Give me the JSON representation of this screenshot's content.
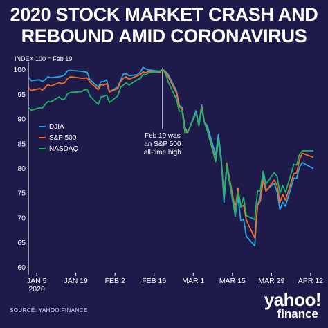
{
  "title_line1": "2020 STOCK MARKET CRASH AND",
  "title_line2": "REBOUND AMID CORONAVIRUS",
  "source": "SOURCE:  YAHOO FINANCE",
  "brand": {
    "logo": "yahoo!",
    "sub": "finance"
  },
  "colors": {
    "background": "#1e1b4b",
    "DJIA": "#2aa7dd",
    "S&P 500": "#f06e24",
    "NASDAQ": "#1fb36b",
    "annotation_line": "#ffffff"
  },
  "chart_data": {
    "type": "line",
    "title": "2020 STOCK MARKET CRASH AND REBOUND AMID CORONAVIRUS",
    "ylabel": "INDEX 100 = Feb 19",
    "ylim": [
      59,
      101
    ],
    "yticks": [
      60,
      65,
      70,
      75,
      80,
      85,
      90,
      95,
      100
    ],
    "xlim": [
      "2020-01-02",
      "2020-04-14"
    ],
    "xticks": [
      {
        "date": "2020-01-05",
        "label": "JAN 5",
        "label2": "2020"
      },
      {
        "date": "2020-01-19",
        "label": "JAN 19"
      },
      {
        "date": "2020-02-02",
        "label": "FEB 2"
      },
      {
        "date": "2020-02-16",
        "label": "FEB 16"
      },
      {
        "date": "2020-03-01",
        "label": "MAR 1"
      },
      {
        "date": "2020-03-15",
        "label": "MAR 15"
      },
      {
        "date": "2020-03-29",
        "label": "MAR 29"
      },
      {
        "date": "2020-04-12",
        "label": "APR 12"
      }
    ],
    "grid": false,
    "legend": "left",
    "annotation": {
      "date": "2020-02-19",
      "lines": [
        "Feb 19 was",
        "an S&P 500",
        "all-time high"
      ]
    },
    "dates": [
      "2020-01-02",
      "2020-01-03",
      "2020-01-06",
      "2020-01-07",
      "2020-01-08",
      "2020-01-09",
      "2020-01-10",
      "2020-01-13",
      "2020-01-14",
      "2020-01-15",
      "2020-01-16",
      "2020-01-17",
      "2020-01-21",
      "2020-01-22",
      "2020-01-23",
      "2020-01-24",
      "2020-01-27",
      "2020-01-28",
      "2020-01-29",
      "2020-01-30",
      "2020-01-31",
      "2020-02-03",
      "2020-02-04",
      "2020-02-05",
      "2020-02-06",
      "2020-02-07",
      "2020-02-10",
      "2020-02-11",
      "2020-02-12",
      "2020-02-13",
      "2020-02-14",
      "2020-02-18",
      "2020-02-19",
      "2020-02-20",
      "2020-02-21",
      "2020-02-24",
      "2020-02-25",
      "2020-02-26",
      "2020-02-27",
      "2020-02-28",
      "2020-03-02",
      "2020-03-03",
      "2020-03-04",
      "2020-03-05",
      "2020-03-06",
      "2020-03-09",
      "2020-03-10",
      "2020-03-11",
      "2020-03-12",
      "2020-03-13",
      "2020-03-16",
      "2020-03-17",
      "2020-03-18",
      "2020-03-19",
      "2020-03-20",
      "2020-03-23",
      "2020-03-24",
      "2020-03-25",
      "2020-03-26",
      "2020-03-27",
      "2020-03-30",
      "2020-03-31",
      "2020-04-01",
      "2020-04-02",
      "2020-04-03",
      "2020-04-06",
      "2020-04-07",
      "2020-04-08",
      "2020-04-09",
      "2020-04-13"
    ],
    "series": [
      {
        "name": "DJIA",
        "values": [
          98.5,
          97.7,
          97.9,
          97.5,
          97.9,
          98.5,
          98.3,
          98.5,
          98.6,
          98.9,
          99.7,
          99.8,
          99.6,
          99.5,
          99.4,
          97.9,
          96.4,
          97.5,
          97.5,
          97.9,
          95.5,
          96.4,
          97.8,
          99.0,
          99.1,
          98.7,
          98.9,
          99.4,
          100.4,
          100.1,
          99.9,
          99.6,
          100.0,
          99.6,
          99.0,
          95.6,
          92.7,
          92.3,
          88.3,
          87.2,
          91.6,
          88.8,
          92.8,
          89.3,
          88.6,
          82.7,
          86.8,
          82.2,
          73.1,
          80.3,
          70.3,
          74.2,
          69.3,
          69.7,
          66.2,
          64.3,
          72.4,
          74.3,
          78.8,
          75.5,
          76.9,
          75.2,
          71.6,
          73.1,
          72.3,
          78.0,
          77.9,
          80.2,
          81.1,
          79.9
        ]
      },
      {
        "name": "S&P 500",
        "values": [
          96.3,
          95.7,
          96.1,
          95.8,
          96.3,
          96.9,
          96.6,
          97.3,
          97.1,
          97.3,
          98.1,
          98.5,
          98.2,
          98.2,
          98.3,
          97.4,
          95.9,
          96.9,
          96.8,
          97.1,
          95.4,
          96.1,
          97.5,
          98.2,
          98.5,
          98.0,
          98.7,
          98.9,
          99.5,
          99.3,
          99.6,
          99.4,
          100.0,
          99.6,
          98.5,
          95.2,
          92.4,
          92.0,
          87.9,
          87.2,
          91.2,
          88.6,
          92.4,
          89.3,
          87.8,
          81.7,
          85.7,
          81.6,
          74.2,
          81.0,
          71.6,
          75.9,
          72.2,
          72.5,
          69.5,
          65.9,
          72.5,
          73.3,
          77.6,
          75.3,
          77.6,
          76.4,
          73.0,
          74.7,
          73.5,
          78.9,
          79.0,
          81.7,
          83.0,
          82.2
        ]
      },
      {
        "name": "NASDAQ",
        "values": [
          92.3,
          91.7,
          92.2,
          92.2,
          92.9,
          93.5,
          93.4,
          94.4,
          93.9,
          94.0,
          95.0,
          95.3,
          95.5,
          95.8,
          96.0,
          94.6,
          92.9,
          94.4,
          94.5,
          94.8,
          93.3,
          94.6,
          96.4,
          96.8,
          97.3,
          96.8,
          97.9,
          98.1,
          99.0,
          98.9,
          99.3,
          99.6,
          100.0,
          99.2,
          97.5,
          93.9,
          91.5,
          91.6,
          87.2,
          87.3,
          91.2,
          88.6,
          92.0,
          89.2,
          87.6,
          81.3,
          85.6,
          81.3,
          74.1,
          80.7,
          70.6,
          75.2,
          72.1,
          74.1,
          70.4,
          69.6,
          75.4,
          75.4,
          79.4,
          76.8,
          79.1,
          78.3,
          74.9,
          76.5,
          75.1,
          80.8,
          80.6,
          82.8,
          83.5,
          83.5
        ]
      }
    ]
  }
}
